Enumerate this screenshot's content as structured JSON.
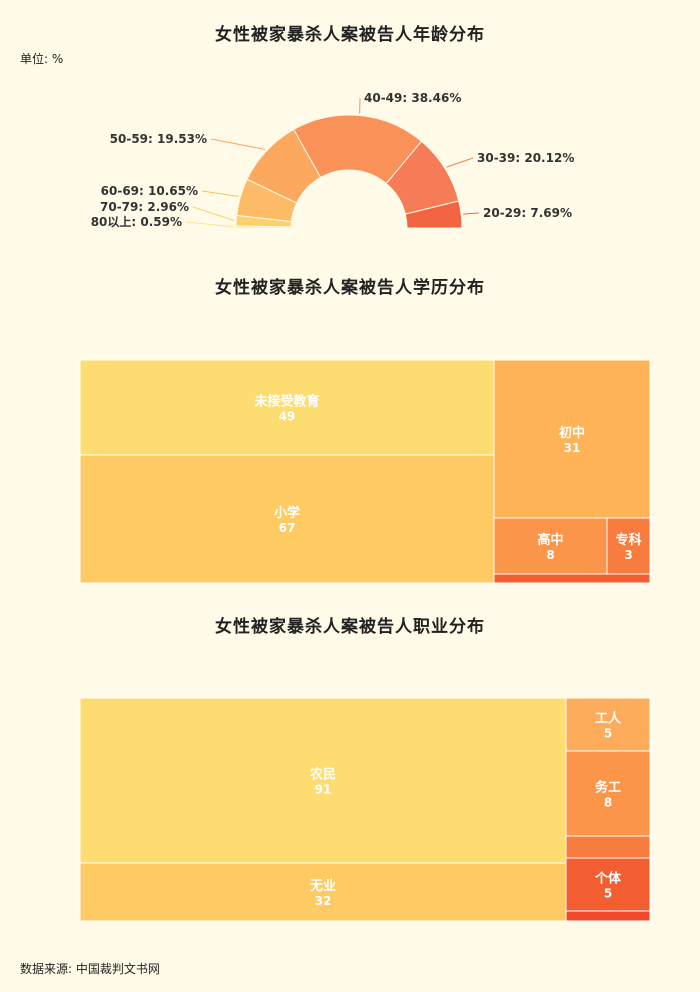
{
  "unit_label": "单位: %",
  "source_label": "数据来源: 中国裁判文书网",
  "chart_data": [
    {
      "type": "pie",
      "title": "女性被家暴杀人案被告人年龄分布",
      "categories": [
        "80以上",
        "70-79",
        "60-69",
        "50-59",
        "40-49",
        "30-39",
        "20-29"
      ],
      "values": [
        0.59,
        2.96,
        10.65,
        19.53,
        38.46,
        20.12,
        7.69
      ],
      "labels": [
        "80以上: 0.59%",
        "70-79: 2.96%",
        "60-69: 10.65%",
        "50-59: 19.53%",
        "40-49: 38.46%",
        "30-39: 20.12%",
        "20-29: 7.69%"
      ],
      "colors": [
        "#fde58b",
        "#fed06c",
        "#fdbb67",
        "#fca85e",
        "#f99158",
        "#f57c56",
        "#f26543"
      ]
    },
    {
      "type": "treemap",
      "title": "女性被家暴杀人案被告人学历分布",
      "categories": [
        "未接受教育",
        "小学",
        "初中",
        "高中",
        "专科",
        ""
      ],
      "values": [
        49,
        67,
        31,
        8,
        3,
        1
      ],
      "labels": [
        "49",
        "67",
        "31",
        "8",
        "3",
        ""
      ],
      "colors": [
        "#fddc72",
        "#fdca64",
        "#fdb356",
        "#fb9549",
        "#f77c3e",
        "#f25e32"
      ]
    },
    {
      "type": "treemap",
      "title": "女性被家暴杀人案被告人职业分布",
      "categories": [
        "农民",
        "无业",
        "工人",
        "务工",
        "",
        "个体",
        ""
      ],
      "values": [
        91,
        32,
        5,
        8,
        2,
        5,
        1
      ],
      "labels": [
        "91",
        "32",
        "5",
        "8",
        "",
        "5",
        ""
      ],
      "colors": [
        "#fddc72",
        "#fdca64",
        "#fcac5a",
        "#fb9549",
        "#f77c3e",
        "#f25e32",
        "#ef4b2b"
      ]
    }
  ]
}
